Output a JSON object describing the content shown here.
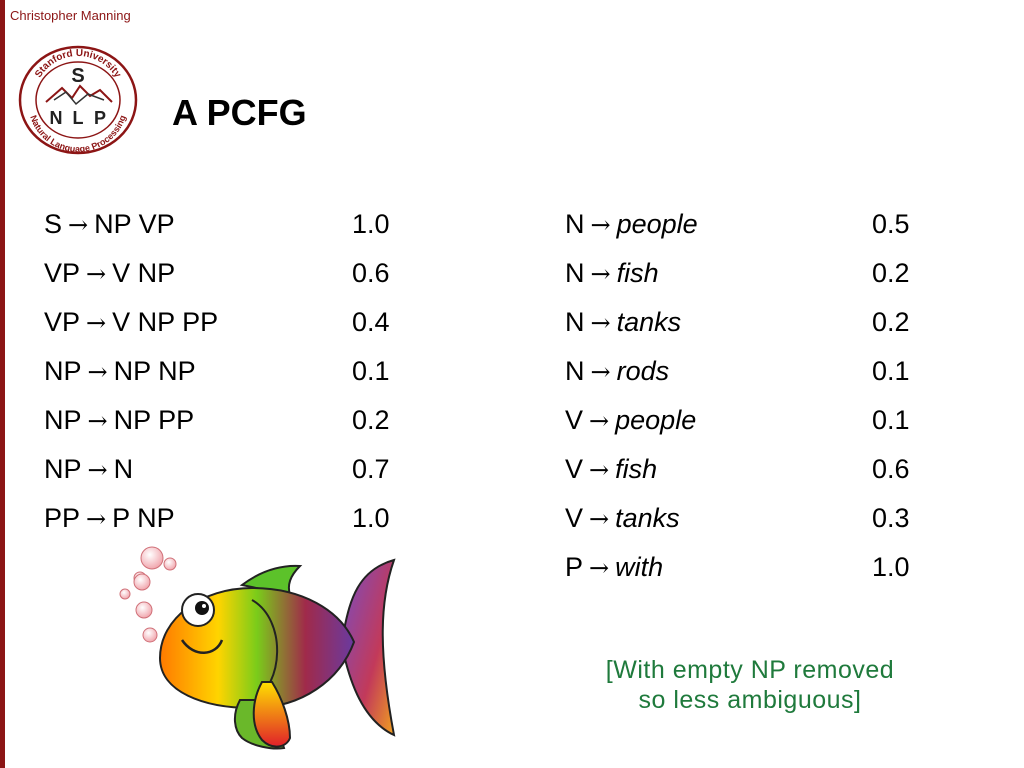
{
  "header": {
    "author": "Christopher Manning"
  },
  "logo": {
    "ring_text_top": "Stanford University",
    "ring_text_bottom": "Natural Language Processing",
    "letters": [
      "S",
      "N",
      "L",
      "P"
    ],
    "color": "#8c1515"
  },
  "slide": {
    "title": "A PCFG"
  },
  "arrow_symbol": "→",
  "grammar": {
    "phrasal_rules": [
      {
        "lhs": "S",
        "rhs": "NP VP",
        "prob": "1.0"
      },
      {
        "lhs": "VP",
        "rhs": "V NP",
        "prob": "0.6"
      },
      {
        "lhs": "VP",
        "rhs": "V NP PP",
        "prob": "0.4"
      },
      {
        "lhs": "NP",
        "rhs": "NP NP",
        "prob": "0.1"
      },
      {
        "lhs": "NP",
        "rhs": "NP PP",
        "prob": "0.2"
      },
      {
        "lhs": "NP",
        "rhs": "N",
        "prob": "0.7"
      },
      {
        "lhs": "PP",
        "rhs": "P NP",
        "prob": "1.0"
      }
    ],
    "lexical_rules": [
      {
        "lhs": "N",
        "rhs": "people",
        "prob": "0.5"
      },
      {
        "lhs": "N",
        "rhs": "fish",
        "prob": "0.2"
      },
      {
        "lhs": "N",
        "rhs": "tanks",
        "prob": "0.2"
      },
      {
        "lhs": "N",
        "rhs": "rods",
        "prob": "0.1"
      },
      {
        "lhs": "V",
        "rhs": "people",
        "prob": "0.1"
      },
      {
        "lhs": "V",
        "rhs": "fish",
        "prob": "0.6"
      },
      {
        "lhs": "V",
        "rhs": "tanks",
        "prob": "0.3"
      },
      {
        "lhs": "P",
        "rhs": "with",
        "prob": "1.0"
      }
    ]
  },
  "note": {
    "line1": "[With empty NP removed",
    "line2": "so less ambiguous]",
    "color": "#1f7a3c"
  },
  "illustration": {
    "icon": "fish-icon"
  }
}
